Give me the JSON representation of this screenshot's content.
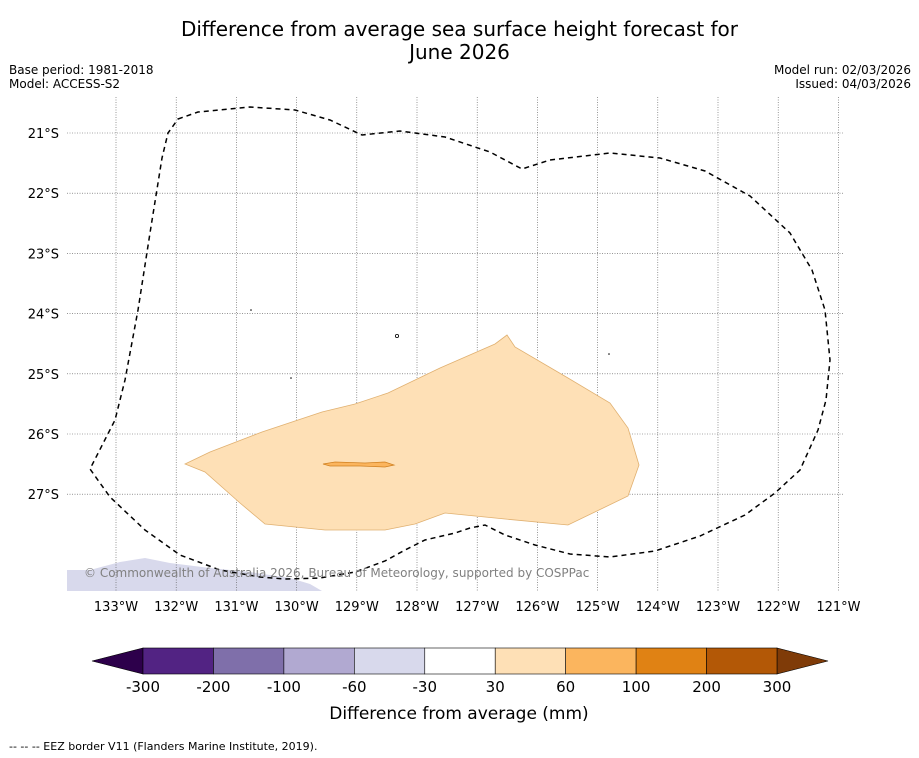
{
  "title_line1": "Difference from average sea surface height forecast for",
  "title_line2": "June 2026",
  "base_period": "Base period: 1981-2018",
  "model": "Model: ACCESS-S2",
  "model_run": "Model run: 02/03/2026",
  "issued": "Issued: 04/03/2026",
  "copyright": "© Commonwealth of Australia 2026, Bureau of Meteorology, supported by COSPPac",
  "footer": "--  --  -- EEZ border V11 (Flanders Marine Institute, 2019).",
  "map": {
    "lon_labels": [
      "133°W",
      "132°W",
      "131°W",
      "130°W",
      "129°W",
      "128°W",
      "127°W",
      "126°W",
      "125°W",
      "124°W",
      "123°W",
      "122°W",
      "121°W"
    ],
    "lat_labels": [
      "21°S",
      "22°S",
      "23°S",
      "24°S",
      "25°S",
      "26°S",
      "27°S"
    ]
  },
  "colorbar": {
    "label": "Difference from average (mm)",
    "ticks": [
      "-300",
      "-200",
      "-100",
      "-60",
      "-30",
      "30",
      "60",
      "100",
      "200",
      "300"
    ],
    "colors": [
      "#522383",
      "#7f6faa",
      "#b1a9d1",
      "#d8d9ec",
      "#ffffff",
      "#fee0b6",
      "#fbb55e",
      "#e08214",
      "#b35806"
    ],
    "under_color": "#2d004b",
    "over_color": "#7f3b08"
  },
  "palette": {
    "land": "#d8d9ec",
    "anomaly_30_60": "#fee0b6",
    "anomaly_60_100": "#fbb55e"
  }
}
